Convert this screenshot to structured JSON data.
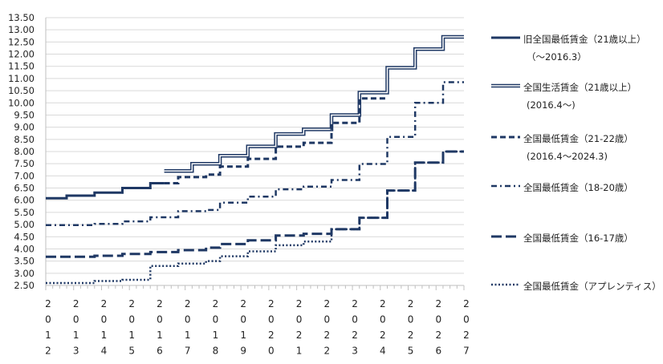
{
  "chart_data": {
    "type": "line",
    "title": "",
    "xlabel": "",
    "ylabel": "",
    "ylim": [
      2.5,
      13.5
    ],
    "yticks": [
      "2.50",
      "3.00",
      "3.50",
      "4.00",
      "4.50",
      "5.00",
      "5.50",
      "6.00",
      "6.50",
      "7.00",
      "7.50",
      "8.00",
      "8.50",
      "9.00",
      "9.50",
      "10.00",
      "10.50",
      "11.00",
      "11.50",
      "12.00",
      "12.50",
      "13.00",
      "13.50"
    ],
    "xtick_labels": [
      "2012",
      "2013",
      "2014",
      "2015",
      "2016",
      "2017",
      "2018",
      "2019",
      "2020",
      "2021",
      "2022",
      "2023",
      "2024",
      "2025",
      "2026",
      "2027"
    ],
    "grid": true,
    "legend_position": "right",
    "series": [
      {
        "name": "旧全国最低賃金（21歳以上）",
        "name_line2": "（～2016.3）",
        "style": "solid",
        "color": "#1f3864",
        "steps": [
          {
            "year": 2012.0,
            "value": 6.08
          },
          {
            "year": 2012.75,
            "value": 6.19
          },
          {
            "year": 2013.75,
            "value": 6.31
          },
          {
            "year": 2014.75,
            "value": 6.5
          },
          {
            "year": 2015.75,
            "value": 6.7
          },
          {
            "year": 2016.25,
            "value": 6.7
          }
        ]
      },
      {
        "name": "全国生活賃金（21歳以上）",
        "name_line2": "(2016.4～)",
        "style": "double",
        "color": "#1f3864",
        "steps": [
          {
            "year": 2016.25,
            "value": 7.2
          },
          {
            "year": 2017.25,
            "value": 7.5
          },
          {
            "year": 2018.25,
            "value": 7.83
          },
          {
            "year": 2019.25,
            "value": 8.21
          },
          {
            "year": 2020.25,
            "value": 8.72
          },
          {
            "year": 2021.25,
            "value": 8.91
          },
          {
            "year": 2022.25,
            "value": 9.5
          },
          {
            "year": 2023.25,
            "value": 10.42
          },
          {
            "year": 2024.25,
            "value": 11.44
          },
          {
            "year": 2025.25,
            "value": 12.21
          },
          {
            "year": 2026.25,
            "value": 12.71
          },
          {
            "year": 2027.0,
            "value": 12.71
          }
        ]
      },
      {
        "name": "全国最低賃金（21-22歳）",
        "name_line2": "(2016.4～2024.3)",
        "style": "dashed",
        "color": "#1f3864",
        "steps": [
          {
            "year": 2016.25,
            "value": 6.7
          },
          {
            "year": 2016.75,
            "value": 6.95
          },
          {
            "year": 2017.75,
            "value": 7.05
          },
          {
            "year": 2018.25,
            "value": 7.38
          },
          {
            "year": 2019.25,
            "value": 7.7
          },
          {
            "year": 2020.25,
            "value": 8.2
          },
          {
            "year": 2021.25,
            "value": 8.36
          },
          {
            "year": 2022.25,
            "value": 9.18
          },
          {
            "year": 2023.25,
            "value": 10.18
          },
          {
            "year": 2024.25,
            "value": 10.18
          }
        ]
      },
      {
        "name": "全国最低賃金（18-20歳）",
        "style": "dashdot",
        "color": "#1f3864",
        "steps": [
          {
            "year": 2012.0,
            "value": 4.98
          },
          {
            "year": 2013.75,
            "value": 5.03
          },
          {
            "year": 2014.75,
            "value": 5.13
          },
          {
            "year": 2015.75,
            "value": 5.3
          },
          {
            "year": 2016.75,
            "value": 5.55
          },
          {
            "year": 2017.75,
            "value": 5.6
          },
          {
            "year": 2018.25,
            "value": 5.9
          },
          {
            "year": 2019.25,
            "value": 6.15
          },
          {
            "year": 2020.25,
            "value": 6.45
          },
          {
            "year": 2021.25,
            "value": 6.56
          },
          {
            "year": 2022.25,
            "value": 6.83
          },
          {
            "year": 2023.25,
            "value": 7.49
          },
          {
            "year": 2024.25,
            "value": 8.6
          },
          {
            "year": 2025.25,
            "value": 10.0
          },
          {
            "year": 2026.25,
            "value": 10.85
          },
          {
            "year": 2027.0,
            "value": 10.85
          }
        ]
      },
      {
        "name": "全国最低賃金（16-17歳）",
        "style": "longdash",
        "color": "#1f3864",
        "steps": [
          {
            "year": 2012.0,
            "value": 3.68
          },
          {
            "year": 2013.75,
            "value": 3.72
          },
          {
            "year": 2014.75,
            "value": 3.79
          },
          {
            "year": 2015.75,
            "value": 3.87
          },
          {
            "year": 2016.75,
            "value": 3.95
          },
          {
            "year": 2017.75,
            "value": 4.05
          },
          {
            "year": 2018.25,
            "value": 4.2
          },
          {
            "year": 2019.25,
            "value": 4.35
          },
          {
            "year": 2020.25,
            "value": 4.55
          },
          {
            "year": 2021.25,
            "value": 4.62
          },
          {
            "year": 2022.25,
            "value": 4.81
          },
          {
            "year": 2023.25,
            "value": 5.28
          },
          {
            "year": 2024.25,
            "value": 6.4
          },
          {
            "year": 2025.25,
            "value": 7.55
          },
          {
            "year": 2026.25,
            "value": 8.0
          },
          {
            "year": 2027.0,
            "value": 8.0
          }
        ]
      },
      {
        "name": "全国最低賃金（アプレンティス）",
        "style": "dotted",
        "color": "#1f3864",
        "steps": [
          {
            "year": 2012.0,
            "value": 2.6
          },
          {
            "year": 2013.75,
            "value": 2.68
          },
          {
            "year": 2014.75,
            "value": 2.73
          },
          {
            "year": 2015.75,
            "value": 3.3
          },
          {
            "year": 2016.75,
            "value": 3.4
          },
          {
            "year": 2017.75,
            "value": 3.5
          },
          {
            "year": 2018.25,
            "value": 3.7
          },
          {
            "year": 2019.25,
            "value": 3.9
          },
          {
            "year": 2020.25,
            "value": 4.15
          },
          {
            "year": 2021.25,
            "value": 4.3
          },
          {
            "year": 2022.25,
            "value": 4.81
          },
          {
            "year": 2023.25,
            "value": 5.28
          },
          {
            "year": 2024.25,
            "value": 6.4
          },
          {
            "year": 2025.25,
            "value": 7.55
          },
          {
            "year": 2026.25,
            "value": 8.0
          },
          {
            "year": 2027.0,
            "value": 8.0
          }
        ]
      }
    ]
  }
}
